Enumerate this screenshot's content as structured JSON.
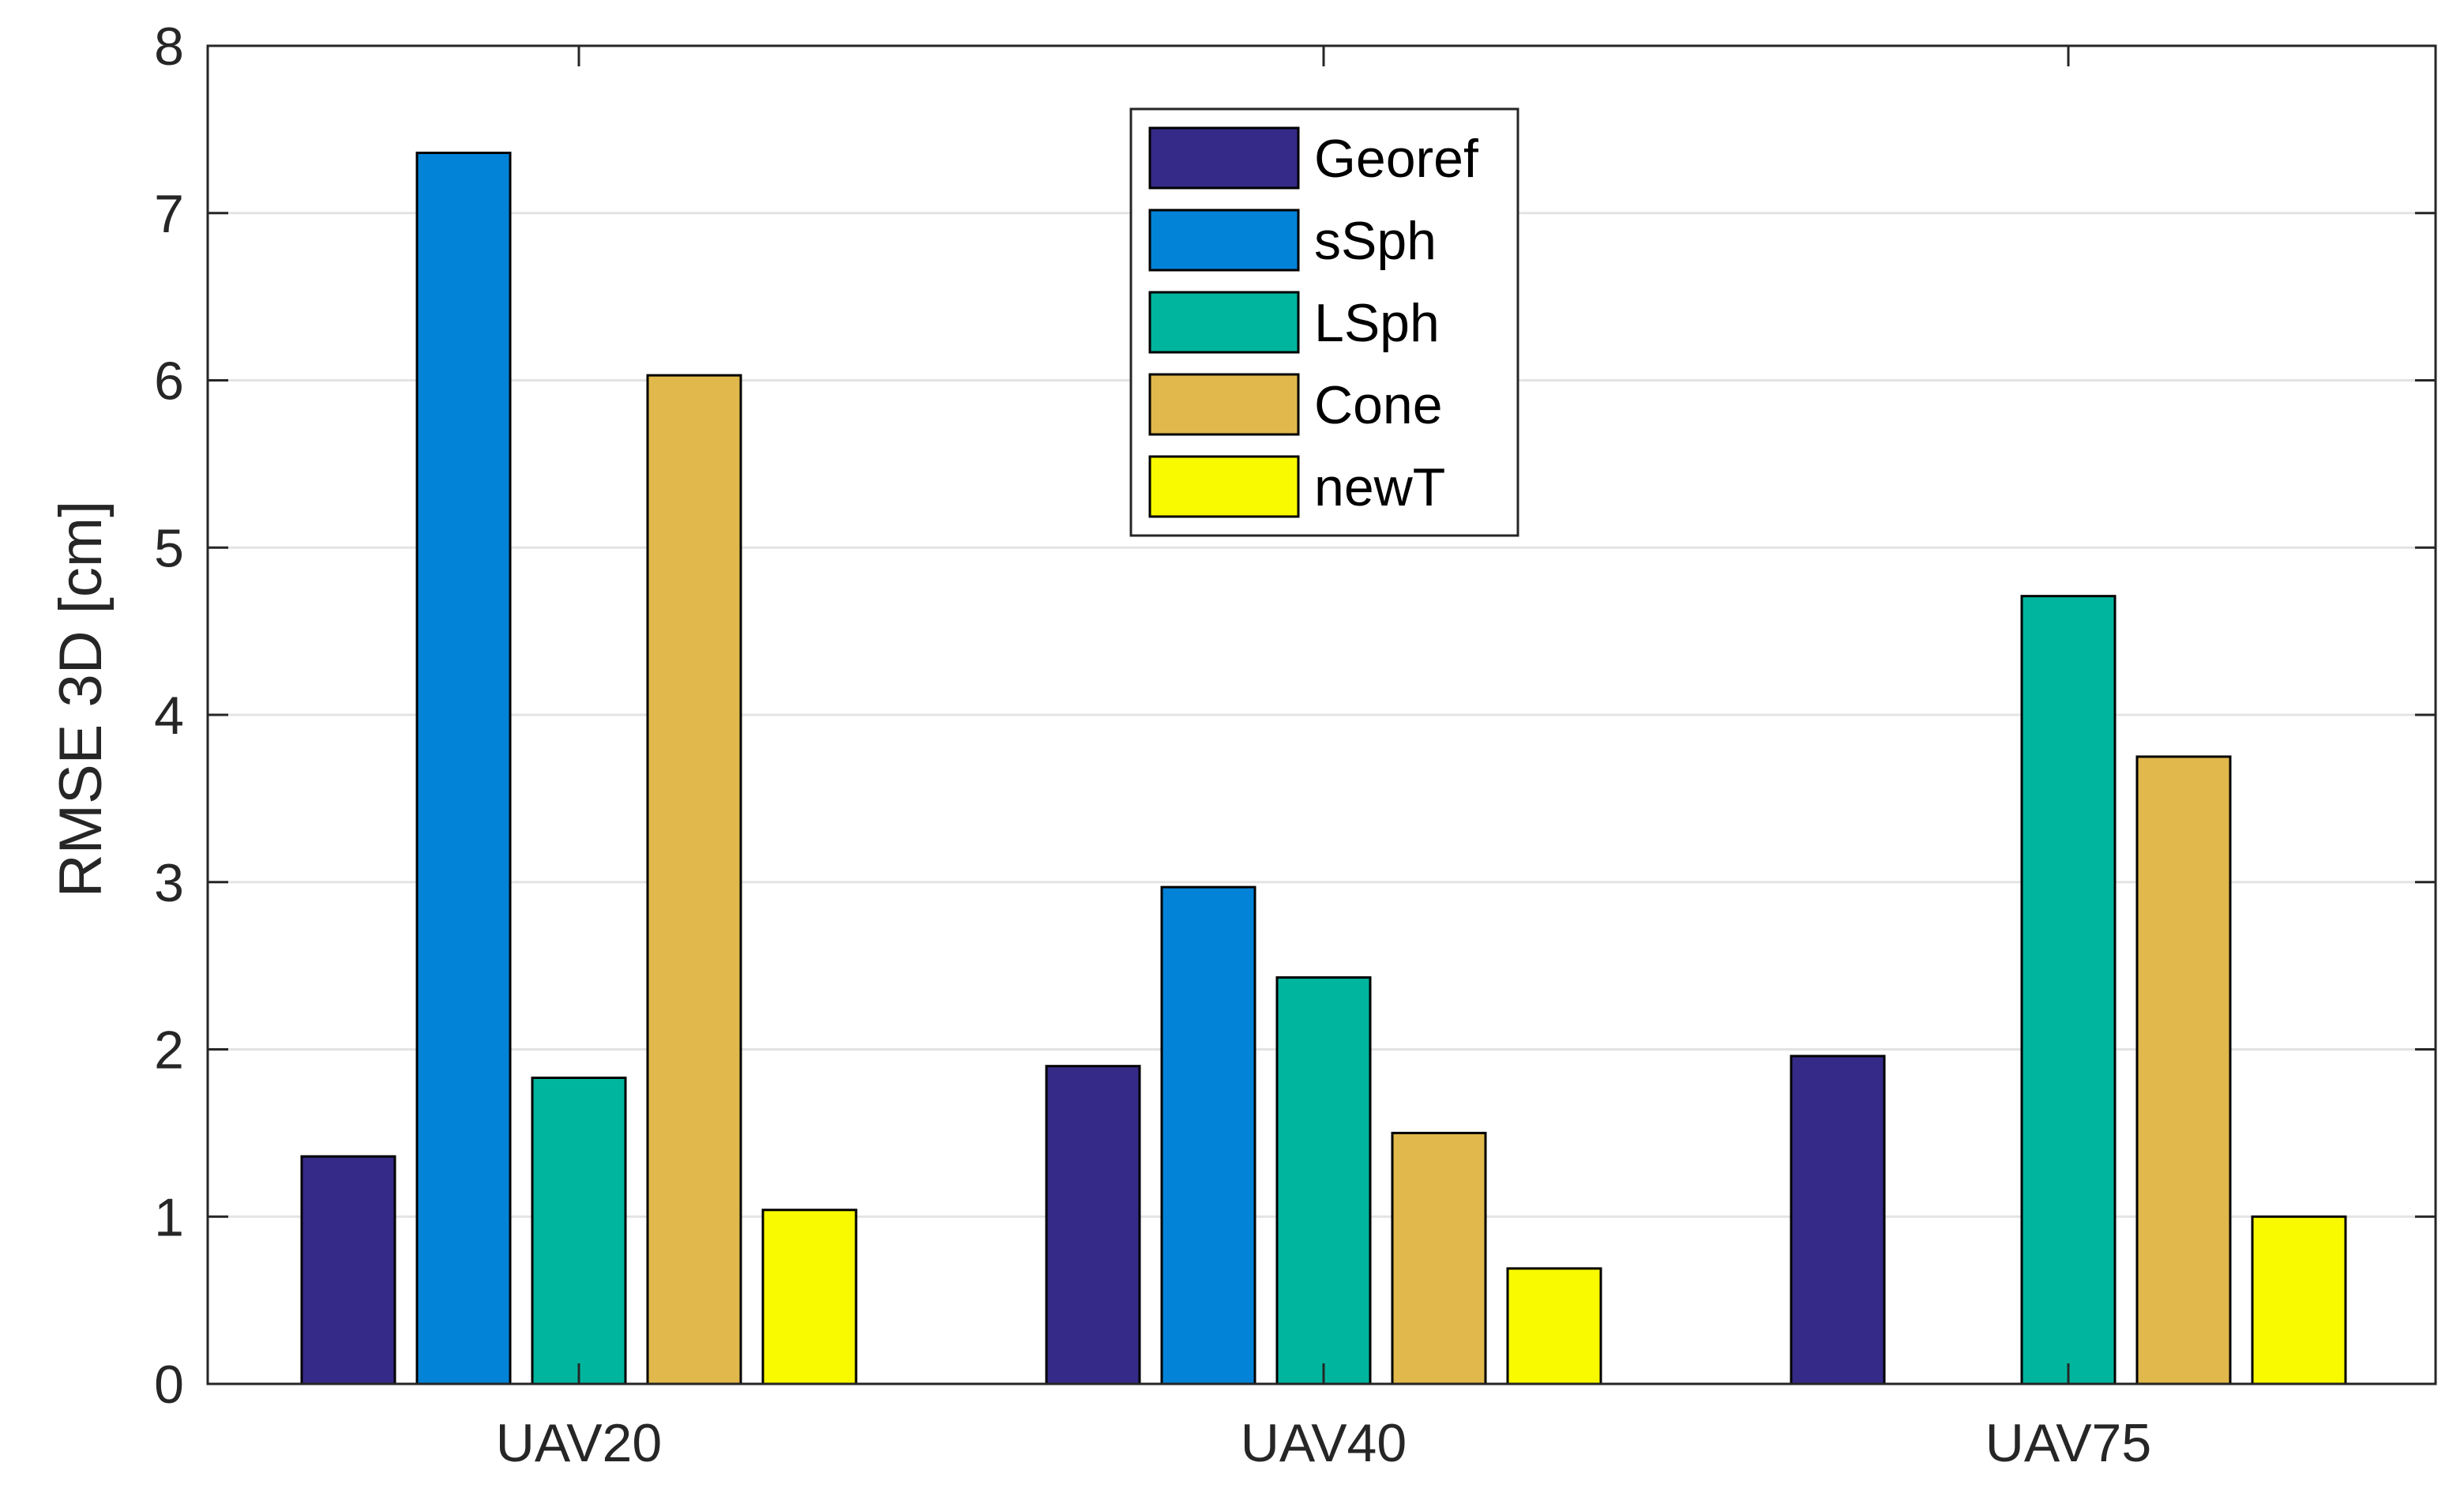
{
  "chart_data": {
    "type": "bar",
    "title": "",
    "xlabel": "",
    "ylabel": "RMSE 3D [cm]",
    "ylim": [
      0,
      8
    ],
    "yticks": [
      "0",
      "1",
      "2",
      "3",
      "4",
      "5",
      "6",
      "7",
      "8"
    ],
    "grid": true,
    "legend_position": "top-center",
    "categories": [
      "UAV20",
      "UAV40",
      "UAV75"
    ],
    "series": [
      {
        "name": "Georef",
        "color": "#352a87",
        "values": [
          1.36,
          1.9,
          1.96
        ]
      },
      {
        "name": "sSph",
        "color": "#0283d8",
        "values": [
          7.36,
          2.97,
          0
        ]
      },
      {
        "name": "LSph",
        "color": "#00b59e",
        "values": [
          1.83,
          2.43,
          4.71
        ]
      },
      {
        "name": "Cone",
        "color": "#e1b84b",
        "values": [
          6.03,
          1.5,
          3.75
        ]
      },
      {
        "name": "newT",
        "color": "#f9f900",
        "values": [
          1.04,
          0.69,
          1.0
        ]
      }
    ]
  }
}
